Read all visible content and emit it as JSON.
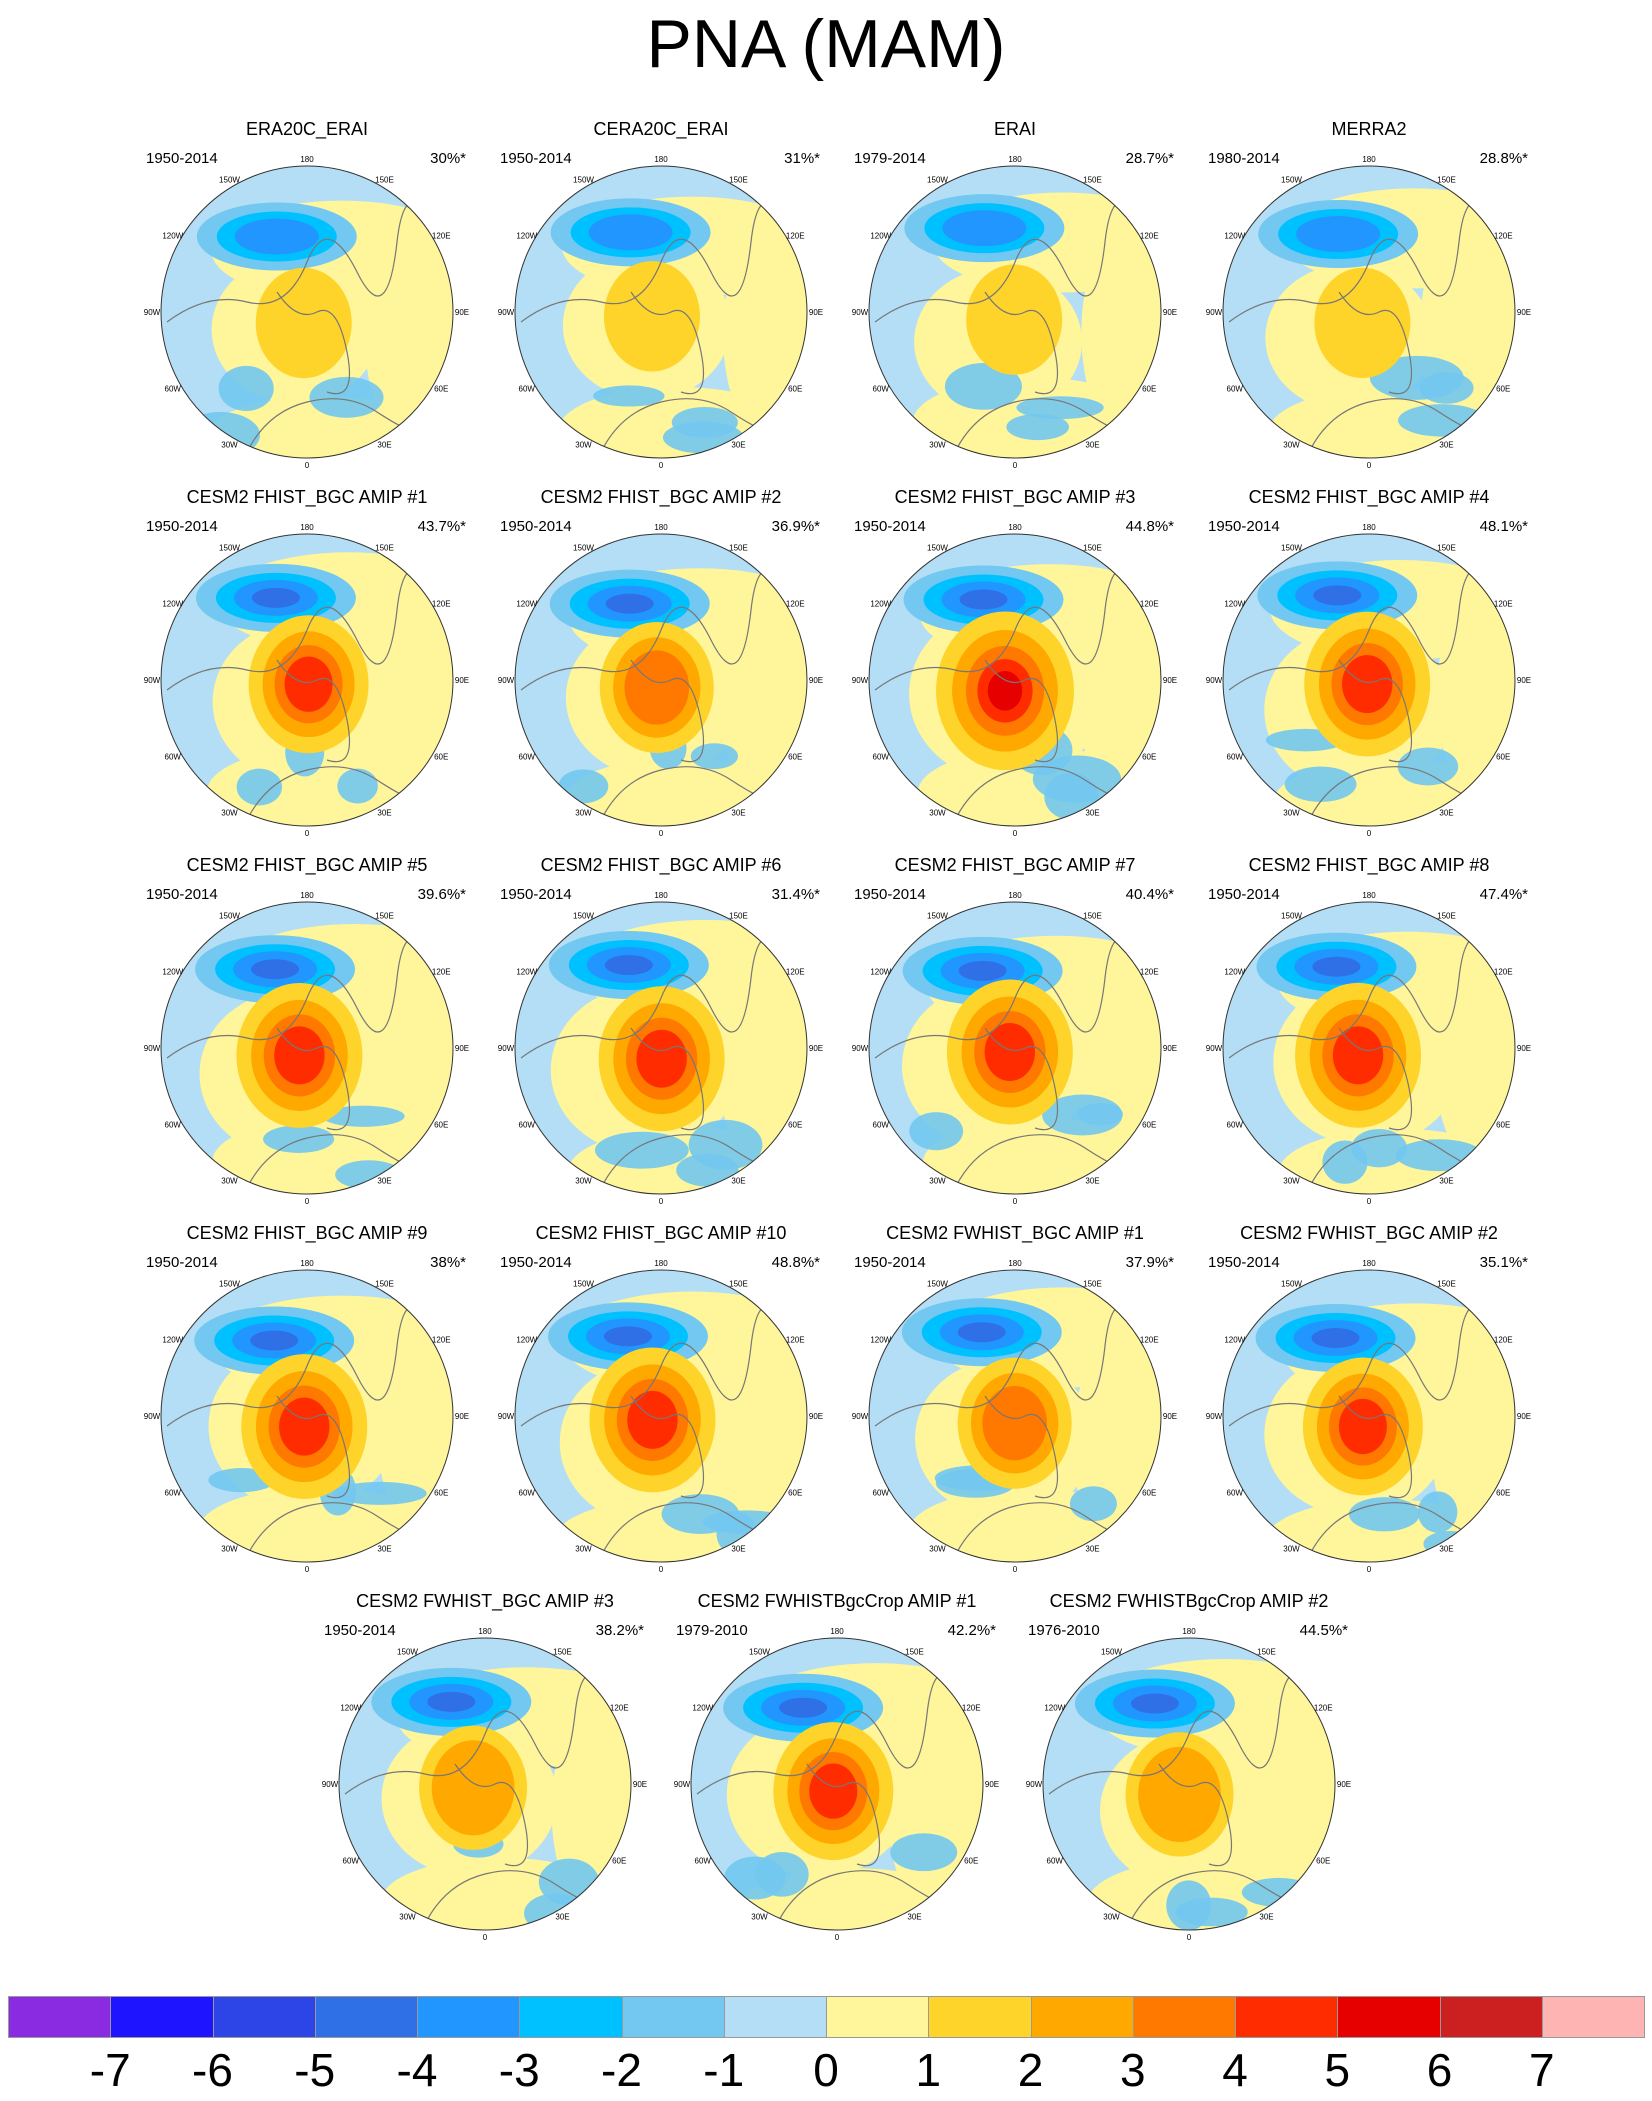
{
  "title": "PNA (MAM)",
  "panels": [
    {
      "title": "ERA20C_ERAI",
      "period": "1950-2014",
      "percent": "30%*",
      "variant": 0,
      "strength": 0.2
    },
    {
      "title": "CERA20C_ERAI",
      "period": "1950-2014",
      "percent": "31%*",
      "variant": 1,
      "strength": 0.2
    },
    {
      "title": "ERAI",
      "period": "1979-2014",
      "percent": "28.7%*",
      "variant": 2,
      "strength": 0.2
    },
    {
      "title": "MERRA2",
      "period": "1980-2014",
      "percent": "28.8%*",
      "variant": 3,
      "strength": 0.2
    },
    {
      "title": "CESM2 FHIST_BGC AMIP #1",
      "period": "1950-2014",
      "percent": "43.7%*",
      "variant": 4,
      "strength": 0.6
    },
    {
      "title": "CESM2 FHIST_BGC AMIP #2",
      "period": "1950-2014",
      "percent": "36.9%*",
      "variant": 5,
      "strength": 0.5
    },
    {
      "title": "CESM2 FHIST_BGC AMIP #3",
      "period": "1950-2014",
      "percent": "44.8%*",
      "variant": 6,
      "strength": 0.9
    },
    {
      "title": "CESM2 FHIST_BGC AMIP #4",
      "period": "1950-2014",
      "percent": "48.1%*",
      "variant": 7,
      "strength": 0.7
    },
    {
      "title": "CESM2 FHIST_BGC AMIP #5",
      "period": "1950-2014",
      "percent": "39.6%*",
      "variant": 8,
      "strength": 0.7
    },
    {
      "title": "CESM2 FHIST_BGC AMIP #6",
      "period": "1950-2014",
      "percent": "31.4%*",
      "variant": 9,
      "strength": 0.7
    },
    {
      "title": "CESM2 FHIST_BGC AMIP #7",
      "period": "1950-2014",
      "percent": "40.4%*",
      "variant": 10,
      "strength": 0.7
    },
    {
      "title": "CESM2 FHIST_BGC AMIP #8",
      "period": "1950-2014",
      "percent": "47.4%*",
      "variant": 11,
      "strength": 0.7
    },
    {
      "title": "CESM2 FHIST_BGC AMIP #9",
      "period": "1950-2014",
      "percent": "38%*",
      "variant": 12,
      "strength": 0.7
    },
    {
      "title": "CESM2 FHIST_BGC AMIP #10",
      "period": "1950-2014",
      "percent": "48.8%*",
      "variant": 13,
      "strength": 0.7
    },
    {
      "title": "CESM2 FWHIST_BGC AMIP #1",
      "period": "1950-2014",
      "percent": "37.9%*",
      "variant": 14,
      "strength": 0.5
    },
    {
      "title": "CESM2 FWHIST_BGC AMIP #2",
      "period": "1950-2014",
      "percent": "35.1%*",
      "variant": 15,
      "strength": 0.6
    },
    {
      "title": "CESM2 FWHIST_BGC AMIP #3",
      "period": "1950-2014",
      "percent": "38.2%*",
      "variant": 16,
      "strength": 0.4
    },
    {
      "title": "CESM2 FWHISTBgcCrop AMIP #1",
      "period": "1979-2010",
      "percent": "42.2%*",
      "variant": 17,
      "strength": 0.6
    },
    {
      "title": "CESM2 FWHISTBgcCrop AMIP #2",
      "period": "1976-2010",
      "percent": "44.5%*",
      "variant": 18,
      "strength": 0.4
    }
  ],
  "longitude_labels": [
    "180",
    "150E",
    "120E",
    "90E",
    "60E",
    "30E",
    "0",
    "30W",
    "60W",
    "90W",
    "120W",
    "150W"
  ],
  "colorbar": {
    "labels": [
      "-7",
      "-6",
      "-5",
      "-4",
      "-3",
      "-2",
      "-1",
      "0",
      "1",
      "2",
      "3",
      "4",
      "5",
      "6",
      "7"
    ],
    "colors": [
      "#8a2be2",
      "#1e14ff",
      "#2d45e6",
      "#3070e6",
      "#2196ff",
      "#00c1ff",
      "#72c8f0",
      "#b3def5",
      "#fff59a",
      "#ffd42a",
      "#ffa800",
      "#ff7800",
      "#ff2c00",
      "#e60000",
      "#cc1f1f",
      "#ffb4b4"
    ]
  },
  "colors": {
    "ocean_fill": "#b3def5",
    "coast": "#777777",
    "outline": "#333333"
  }
}
